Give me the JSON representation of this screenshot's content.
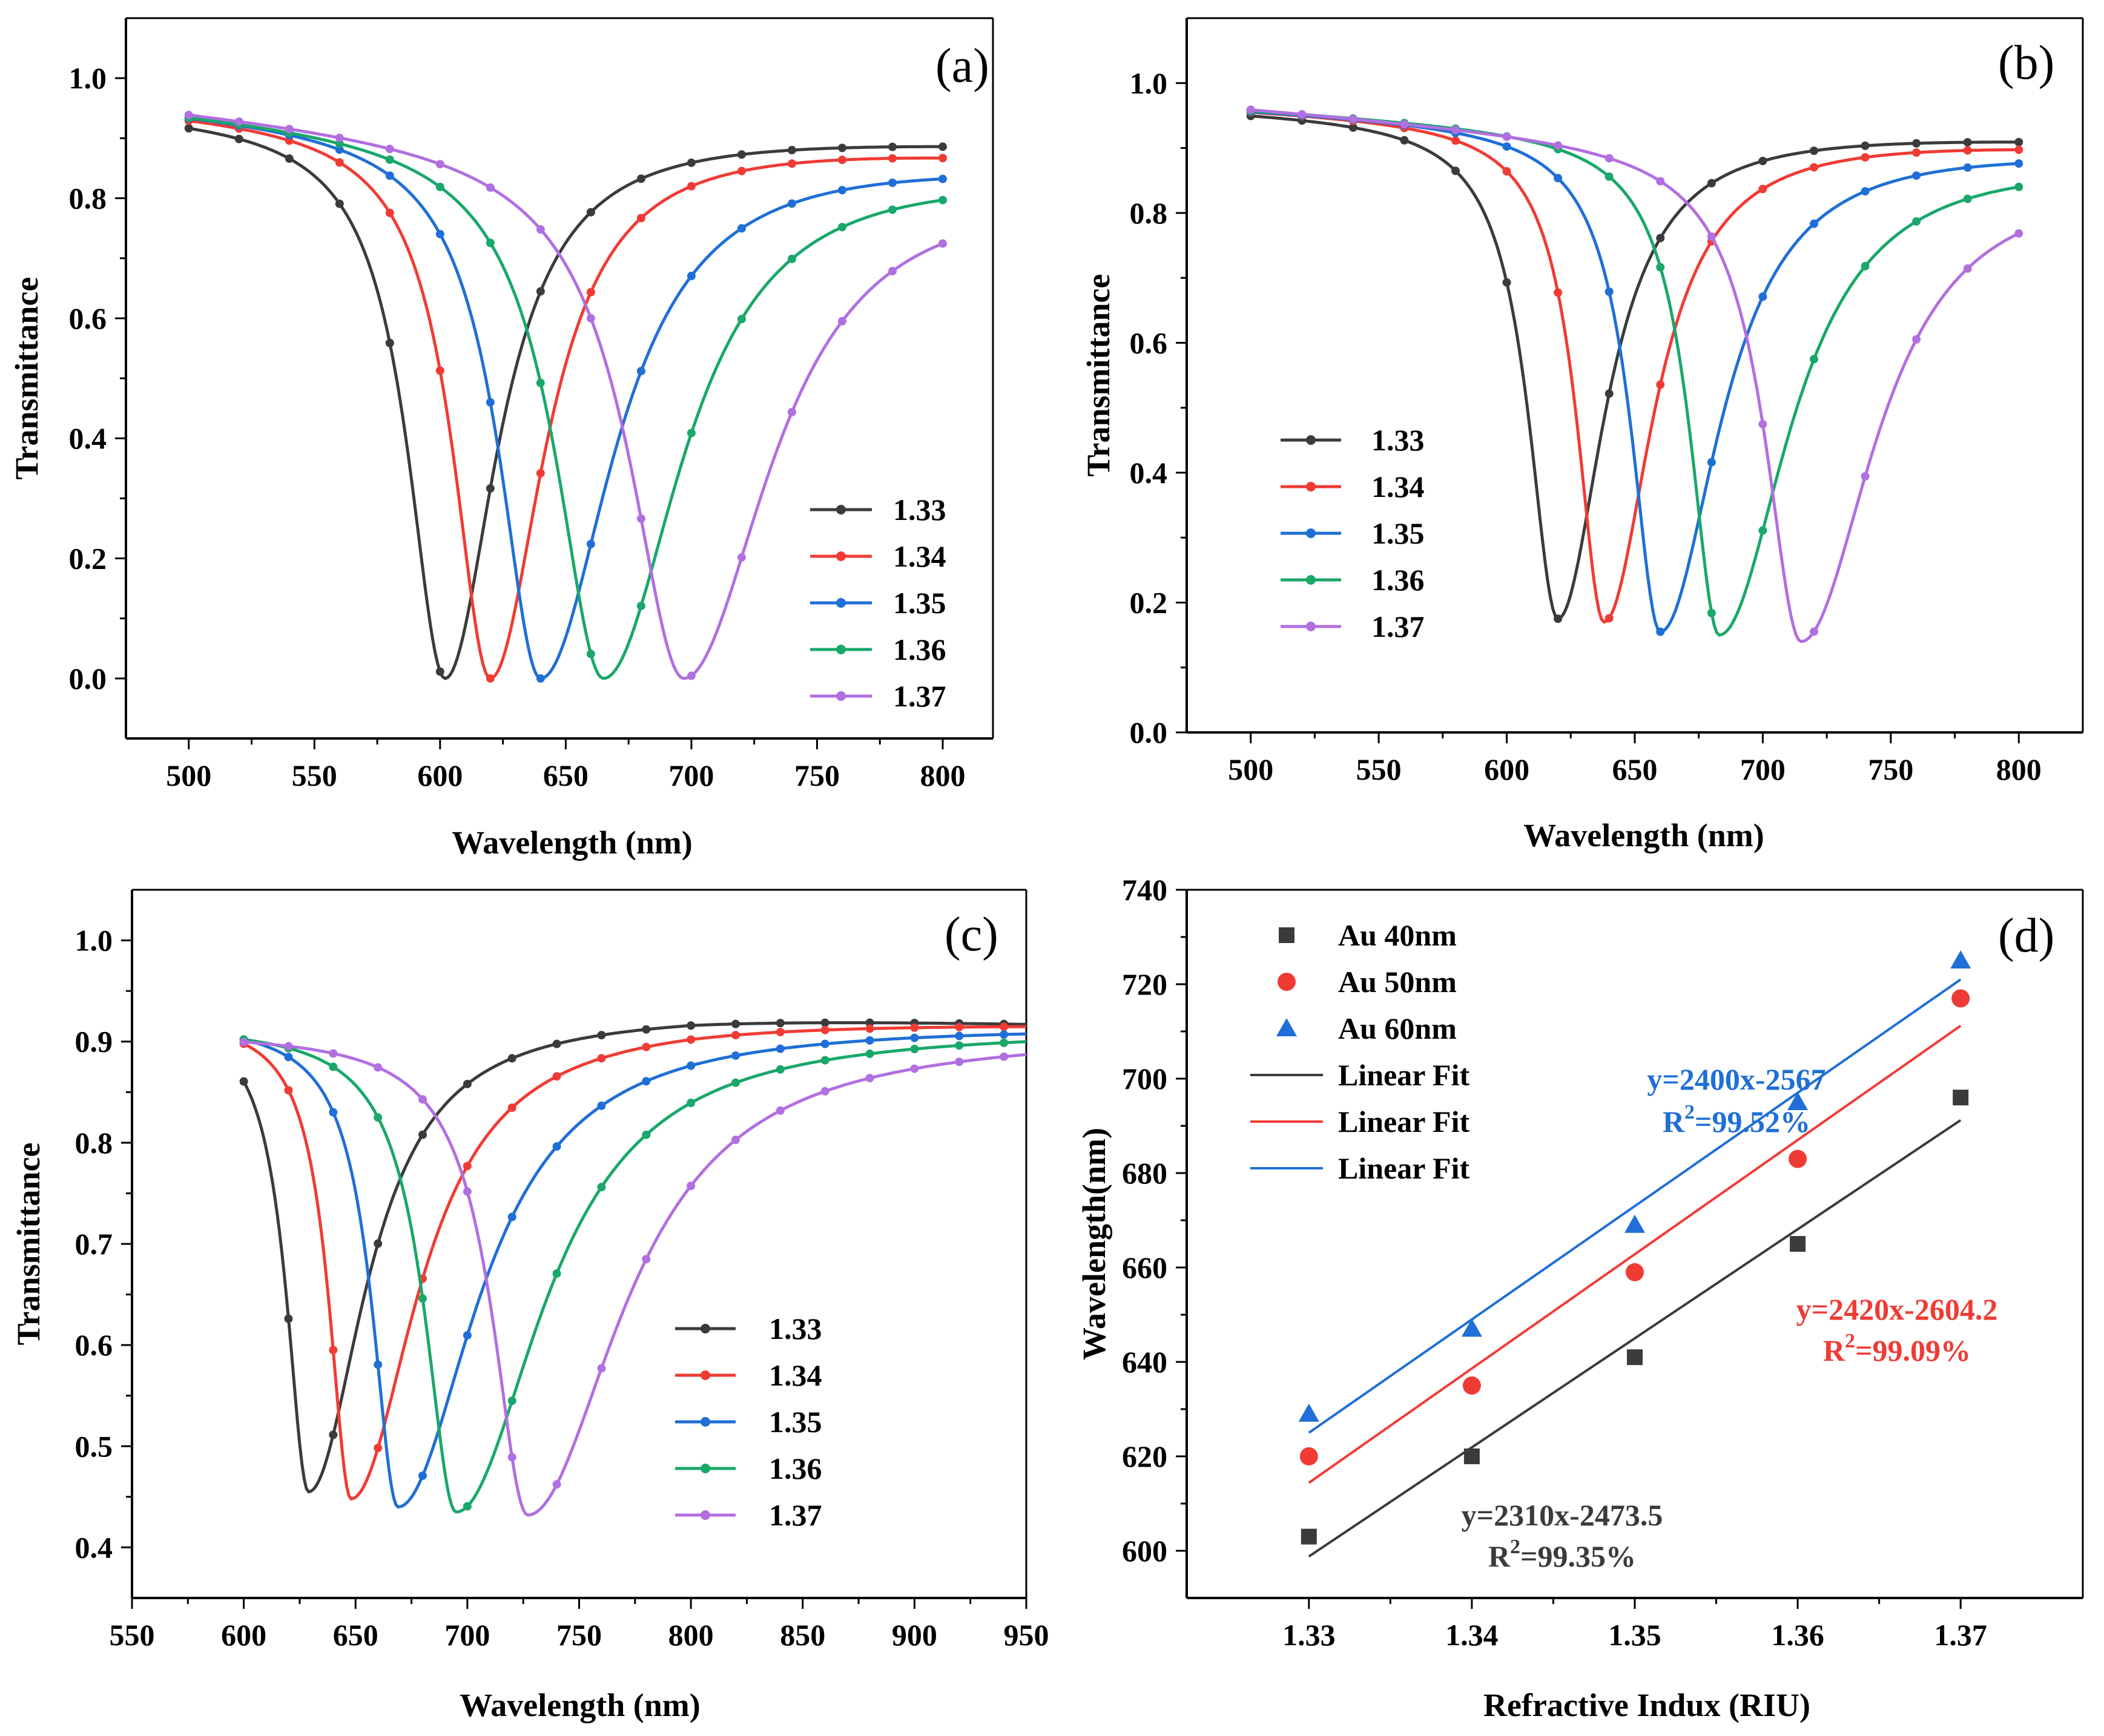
{
  "colors": {
    "s133": "#3b3b3b",
    "s134": "#f03b35",
    "s135": "#1f6fd6",
    "s136": "#19a86a",
    "s137": "#b26fe0",
    "au40": "#3b3b3b",
    "au50": "#f03b35",
    "au60": "#1f6fd6"
  },
  "chart_data": [
    {
      "id": "a",
      "type": "line",
      "panel_label": "(a)",
      "xlabel": "Wavelength (nm)",
      "ylabel": "Transmittance",
      "xlim": [
        475,
        820
      ],
      "ylim": [
        -0.1,
        1.1
      ],
      "xticks": [
        500,
        550,
        600,
        650,
        700,
        750,
        800
      ],
      "yticks": [
        0.0,
        0.2,
        0.4,
        0.6,
        0.8,
        1.0
      ],
      "tick_decimals": 1,
      "legend_position": "bottom-right",
      "series": [
        {
          "name": "1.33",
          "color_key": "s133",
          "model": {
            "base": 0.945,
            "tail": 0.9,
            "center": 602,
            "min": 0.0,
            "wl": 18,
            "wr": 25
          }
        },
        {
          "name": "1.34",
          "color_key": "s134",
          "model": {
            "base": 0.95,
            "tail": 0.885,
            "center": 620,
            "min": 0.0,
            "wl": 18,
            "wr": 26
          }
        },
        {
          "name": "1.35",
          "color_key": "s135",
          "model": {
            "base": 0.952,
            "tail": 0.872,
            "center": 640,
            "min": 0.0,
            "wl": 20,
            "wr": 35
          }
        },
        {
          "name": "1.36",
          "color_key": "s136",
          "model": {
            "base": 0.952,
            "tail": 0.86,
            "center": 665,
            "min": 0.0,
            "wl": 23,
            "wr": 38
          }
        },
        {
          "name": "1.37",
          "color_key": "s137",
          "model": {
            "base": 0.955,
            "tail": 0.845,
            "center": 697,
            "min": 0.0,
            "wl": 26,
            "wr": 42
          }
        }
      ]
    },
    {
      "id": "b",
      "type": "line",
      "panel_label": "(b)",
      "xlabel": "Wavelength (nm)",
      "ylabel": "Transmittance",
      "xlim": [
        475,
        825
      ],
      "ylim": [
        0.0,
        1.1
      ],
      "xticks": [
        500,
        550,
        600,
        650,
        700,
        750,
        800
      ],
      "yticks": [
        0.0,
        0.2,
        0.4,
        0.6,
        0.8,
        1.0
      ],
      "tick_decimals": 1,
      "legend_position": "middle-left",
      "series": [
        {
          "name": "1.33",
          "color_key": "s133",
          "model": {
            "base": 0.96,
            "tail": 0.92,
            "center": 620,
            "min": 0.175,
            "wl": 14,
            "wr": 22
          }
        },
        {
          "name": "1.34",
          "color_key": "s134",
          "model": {
            "base": 0.962,
            "tail": 0.912,
            "center": 638,
            "min": 0.17,
            "wl": 13,
            "wr": 23
          }
        },
        {
          "name": "1.35",
          "color_key": "s135",
          "model": {
            "base": 0.962,
            "tail": 0.905,
            "center": 660,
            "min": 0.155,
            "wl": 14,
            "wr": 28
          }
        },
        {
          "name": "1.36",
          "color_key": "s136",
          "model": {
            "base": 0.962,
            "tail": 0.895,
            "center": 683,
            "min": 0.15,
            "wl": 14,
            "wr": 33
          }
        },
        {
          "name": "1.37",
          "color_key": "s137",
          "model": {
            "base": 0.964,
            "tail": 0.875,
            "center": 715,
            "min": 0.14,
            "wl": 17,
            "wr": 35
          }
        }
      ]
    },
    {
      "id": "c",
      "type": "line",
      "panel_label": "(c)",
      "xlabel": "Wavelength (nm)",
      "ylabel": "Transmittance",
      "xlim": [
        550,
        950
      ],
      "ylim": [
        0.35,
        1.05
      ],
      "xticks": [
        550,
        600,
        650,
        700,
        750,
        800,
        850,
        900,
        950
      ],
      "yticks": [
        0.4,
        0.5,
        0.6,
        0.7,
        0.8,
        0.9,
        1.0
      ],
      "tick_decimals": 1,
      "legend_position": "bottom-center",
      "series": [
        {
          "name": "1.33",
          "color_key": "s133",
          "model": {
            "plateau": 0.93,
            "end": 0.921,
            "center": 629,
            "min": 0.455,
            "wl": 12,
            "wr": 30,
            "x0": 600
          }
        },
        {
          "name": "1.34",
          "color_key": "s134",
          "model": {
            "plateau": 0.926,
            "end": 0.921,
            "center": 648,
            "min": 0.448,
            "wl": 12,
            "wr": 35,
            "x0": 600
          }
        },
        {
          "name": "1.35",
          "color_key": "s135",
          "model": {
            "plateau": 0.921,
            "end": 0.918,
            "center": 669,
            "min": 0.44,
            "wl": 14,
            "wr": 42,
            "x0": 600
          }
        },
        {
          "name": "1.36",
          "color_key": "s136",
          "model": {
            "plateau": 0.917,
            "end": 0.915,
            "center": 695,
            "min": 0.435,
            "wl": 17,
            "wr": 46,
            "x0": 600
          }
        },
        {
          "name": "1.37",
          "color_key": "s137",
          "model": {
            "plateau": 0.91,
            "end": 0.91,
            "center": 727,
            "min": 0.432,
            "wl": 19,
            "wr": 50,
            "x0": 600
          }
        }
      ]
    },
    {
      "id": "d",
      "type": "scatter",
      "panel_label": "(d)",
      "xlabel": "Refractive Indux (RIU)",
      "ylabel": "Wavelength(nm)",
      "xlim": [
        1.3225,
        1.3775
      ],
      "ylim": [
        590,
        740
      ],
      "xticks": [
        1.33,
        1.34,
        1.35,
        1.36,
        1.37
      ],
      "yticks": [
        600,
        620,
        640,
        660,
        680,
        700,
        720,
        740
      ],
      "x_tick_decimals": 2,
      "y_tick_decimals": 0,
      "legend_position": "top-left",
      "series": [
        {
          "name": "Au 40nm",
          "marker": "square",
          "color_key": "au40",
          "x": [
            1.33,
            1.34,
            1.35,
            1.36,
            1.37
          ],
          "y": [
            603,
            620,
            641,
            665,
            696
          ],
          "fit": {
            "label": "Linear Fit",
            "slope": 2310,
            "intercept": -2473.5
          },
          "equation": "y=2310x-2473.5",
          "r2_text": "=99.35%"
        },
        {
          "name": "Au 50nm",
          "marker": "circle",
          "color_key": "au50",
          "x": [
            1.33,
            1.34,
            1.35,
            1.36,
            1.37
          ],
          "y": [
            620,
            635,
            659,
            683,
            717
          ],
          "fit": {
            "label": "Linear Fit",
            "slope": 2420,
            "intercept": -2604.2
          },
          "equation": "y=2420x-2604.2",
          "r2_text": "=99.09%"
        },
        {
          "name": "Au 60nm",
          "marker": "triangle",
          "color_key": "au60",
          "x": [
            1.33,
            1.34,
            1.35,
            1.36,
            1.37
          ],
          "y": [
            629,
            647,
            669,
            695,
            725
          ],
          "fit": {
            "label": "Linear Fit",
            "slope": 2400,
            "intercept": -2567
          },
          "equation": "y=2400x-2567",
          "r2_text": "=99.52%"
        }
      ],
      "r2_prefix": "R",
      "r2_sup": "2"
    }
  ]
}
